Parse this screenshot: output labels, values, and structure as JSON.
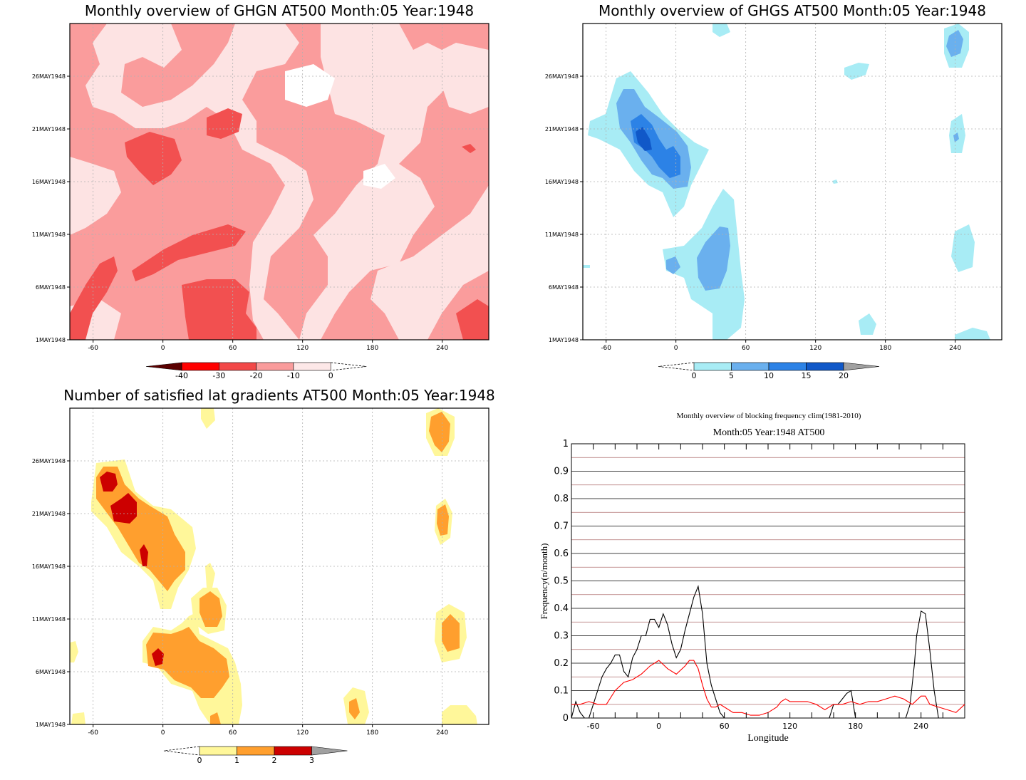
{
  "chart_data": [
    {
      "type": "heatmap",
      "title": "Monthly overview of GHGN AT500 Month:05 Year:1948",
      "x_ticks": [
        -60,
        0,
        60,
        120,
        180,
        240
      ],
      "y_ticks": [
        "1MAY1948",
        "6MAY1948",
        "11MAY1948",
        "16MAY1948",
        "21MAY1948",
        "26MAY1948"
      ],
      "xlim": [
        -80,
        280
      ],
      "colorbar": {
        "labels": [
          "-40",
          "-30",
          "-20",
          "-10",
          "0"
        ],
        "colors": [
          "#5a0000",
          "#ff0000",
          "#f24848",
          "#fa9c9c",
          "#fde8e8"
        ]
      },
      "colors": {
        "bg": "#fa9c9c",
        "light": "#fde3e3",
        "white": "#ffffff",
        "mid": "#f25050"
      }
    },
    {
      "type": "heatmap",
      "title": "Monthly overview of GHGS AT500 Month:05 Year:1948",
      "x_ticks": [
        -60,
        0,
        60,
        120,
        180,
        240
      ],
      "y_ticks": [
        "1MAY1948",
        "6MAY1948",
        "11MAY1948",
        "16MAY1948",
        "21MAY1948",
        "26MAY1948"
      ],
      "xlim": [
        -80,
        280
      ],
      "colorbar": {
        "labels": [
          "0",
          "5",
          "10",
          "15",
          "20"
        ],
        "colors": [
          "#a8ecf5",
          "#6ab0ee",
          "#2c82e6",
          "#1058c8",
          "#a0a0a0"
        ]
      }
    },
    {
      "type": "heatmap",
      "title": "Number of satisfied lat gradients AT500 Month:05 Year:1948",
      "x_ticks": [
        -60,
        0,
        60,
        120,
        180,
        240
      ],
      "y_ticks": [
        "1MAY1948",
        "6MAY1948",
        "11MAY1948",
        "16MAY1948",
        "21MAY1948",
        "26MAY1948"
      ],
      "xlim": [
        -80,
        280
      ],
      "colorbar": {
        "labels": [
          "0",
          "1",
          "2",
          "3"
        ],
        "colors": [
          "#fff79a",
          "#ff9f2e",
          "#cc0000",
          "#a0a0a0"
        ]
      }
    },
    {
      "type": "line",
      "title": "Monthly overview of blocking frequency clim(1981-2010)",
      "subtitle": "Month:05 Year:1948  AT500",
      "xlabel": "Longitude",
      "ylabel": "Frequency(n/month)",
      "xlim": [
        -80,
        280
      ],
      "ylim": [
        0,
        1
      ],
      "x_ticks": [
        -60,
        0,
        60,
        120,
        180,
        240
      ],
      "y_ticks": [
        "0",
        "0.1",
        "0.2",
        "0.3",
        "0.4",
        "0.5",
        "0.6",
        "0.7",
        "0.8",
        "0.9",
        "1"
      ],
      "series": [
        {
          "color": "#000000",
          "x": [
            -80,
            -76,
            -72,
            -68,
            -64,
            -60,
            -56,
            -52,
            -48,
            -44,
            -40,
            -36,
            -32,
            -28,
            -24,
            -20,
            -16,
            -12,
            -8,
            -4,
            0,
            4,
            8,
            12,
            16,
            20,
            24,
            28,
            32,
            36,
            40,
            44,
            48,
            52,
            56,
            60,
            64,
            120,
            150,
            156,
            160,
            164,
            168,
            172,
            176,
            180,
            220,
            226,
            230,
            234,
            236,
            240,
            244,
            248,
            252,
            256,
            260,
            264,
            268,
            272,
            276,
            280
          ],
          "y": [
            0,
            0.06,
            0.02,
            0,
            0,
            0.05,
            0.1,
            0.15,
            0.18,
            0.2,
            0.23,
            0.23,
            0.17,
            0.15,
            0.22,
            0.25,
            0.3,
            0.3,
            0.36,
            0.36,
            0.33,
            0.38,
            0.34,
            0.27,
            0.22,
            0.25,
            0.32,
            0.38,
            0.44,
            0.48,
            0.38,
            0.2,
            0.12,
            0.07,
            0.02,
            0,
            0,
            0,
            0,
            0,
            0.05,
            0.05,
            0.07,
            0.09,
            0.1,
            0,
            0,
            0,
            0.05,
            0.2,
            0.3,
            0.39,
            0.38,
            0.25,
            0.1,
            0,
            0,
            0,
            0,
            0,
            0,
            0
          ]
        },
        {
          "color": "#ff0000",
          "x": [
            -80,
            -72,
            -64,
            -56,
            -48,
            -40,
            -32,
            -24,
            -16,
            -8,
            0,
            8,
            16,
            24,
            28,
            32,
            36,
            40,
            44,
            48,
            52,
            56,
            60,
            68,
            76,
            84,
            92,
            100,
            108,
            112,
            116,
            120,
            128,
            136,
            144,
            152,
            160,
            168,
            176,
            184,
            192,
            200,
            208,
            216,
            224,
            232,
            240,
            244,
            248,
            256,
            264,
            272,
            280
          ],
          "y": [
            0.05,
            0.05,
            0.06,
            0.05,
            0.05,
            0.1,
            0.13,
            0.14,
            0.16,
            0.19,
            0.21,
            0.18,
            0.16,
            0.19,
            0.21,
            0.21,
            0.18,
            0.12,
            0.07,
            0.04,
            0.04,
            0.05,
            0.04,
            0.02,
            0.02,
            0.01,
            0.01,
            0.02,
            0.04,
            0.06,
            0.07,
            0.06,
            0.06,
            0.06,
            0.05,
            0.03,
            0.05,
            0.05,
            0.06,
            0.05,
            0.06,
            0.06,
            0.07,
            0.08,
            0.07,
            0.05,
            0.08,
            0.08,
            0.05,
            0.04,
            0.03,
            0.02,
            0.05
          ]
        }
      ],
      "ref_lines": {
        "color": "#b07070"
      }
    }
  ]
}
